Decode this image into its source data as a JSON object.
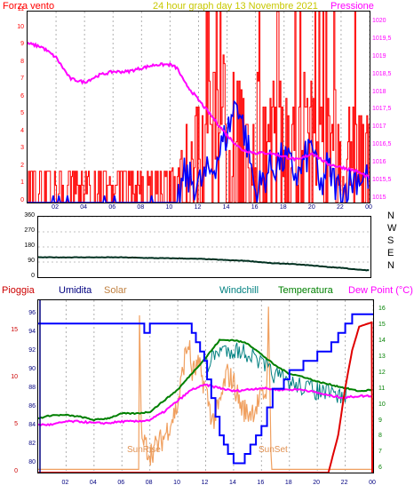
{
  "header": {
    "left": "Forza vento",
    "center": "24 hour graph day   13 Novembre 2021",
    "right": "Pressione"
  },
  "colors": {
    "wind": "#ff0000",
    "gust": "#ff4040",
    "avg_wind": "#0000ff",
    "pressure": "#ff00ff",
    "title": "#c8c800",
    "rain": "#cc0000",
    "humidity": "#000080",
    "solar": "#c08040",
    "windchill": "#008080",
    "temperature": "#008000",
    "dewpoint": "#ff00ff",
    "direction": "#003020"
  },
  "time_ticks": [
    "02",
    "04",
    "06",
    "08",
    "10",
    "12",
    "14",
    "16",
    "18",
    "20",
    "22",
    "00"
  ],
  "wind_panel": {
    "left_ticks": [
      "11",
      "10",
      "9",
      "8",
      "7",
      "6",
      "5",
      "4",
      "3",
      "2",
      "1",
      "0"
    ],
    "right_ticks": [
      "1020",
      "1019,5",
      "1019",
      "1018,5",
      "1018",
      "1017,5",
      "1017",
      "1016,5",
      "1016",
      "1015,5",
      "1015"
    ]
  },
  "dir_panel": {
    "left_ticks": [
      "360",
      "270",
      "180",
      "90",
      "0"
    ],
    "right_labels": [
      "N",
      "W",
      "S",
      "E",
      "N"
    ]
  },
  "bottom_panel": {
    "legend": {
      "rain": "Pioggia",
      "humidity": "Umidita",
      "solar": "Solar",
      "windchill": "Windchill",
      "temperature": "Temperatura",
      "dewpoint": "Dew Point (°C)"
    },
    "left_ticks": [
      "96",
      "94",
      "92",
      "90",
      "88",
      "86",
      "84",
      "82",
      "80"
    ],
    "rain_ticks": [
      "15",
      "10",
      "5",
      "0"
    ],
    "right_ticks": [
      "16",
      "15",
      "14",
      "13",
      "12",
      "11",
      "10",
      "9",
      "8",
      "7",
      "6"
    ],
    "sunrise": "SunRise",
    "sunset": "SunSet"
  }
}
